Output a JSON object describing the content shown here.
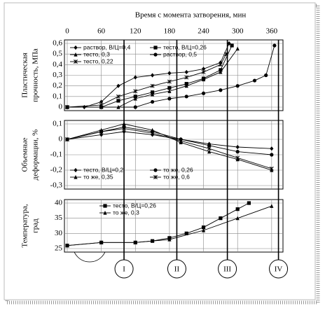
{
  "chart_data": [
    {
      "type": "line",
      "x_label": "Время с момента затворения, мин",
      "y_label": [
        "Пластическая",
        "прочность, МПа"
      ],
      "xlim": [
        0,
        375
      ],
      "xticks": [
        0,
        60,
        120,
        180,
        240,
        300,
        360
      ],
      "ylim": [
        0,
        0.6
      ],
      "yticks": [
        0,
        {
          "value": 0.1,
          "label": "0,1"
        },
        {
          "value": 0.2,
          "label": "0,2"
        },
        {
          "value": 0.3,
          "label": "0,3"
        },
        {
          "value": 0.4,
          "label": "0,4"
        },
        {
          "value": 0.5,
          "label": "0,5"
        },
        {
          "value": 0.6,
          "label": "0,6"
        }
      ],
      "grid": true,
      "series": [
        {
          "name": "раствор, В/Ц=0,4",
          "marker": "diamond",
          "color": "#000000",
          "x": [
            0,
            30,
            60,
            90,
            120,
            150,
            180,
            210,
            240,
            270,
            285
          ],
          "values": [
            0,
            0,
            0.05,
            0.2,
            0.28,
            0.3,
            0.32,
            0.33,
            0.36,
            0.42,
            0.6
          ]
        },
        {
          "name": "тесто, В/Ц=0,26",
          "marker": "square",
          "color": "#000000",
          "x": [
            0,
            60,
            90,
            120,
            150,
            180,
            210,
            240,
            270,
            290
          ],
          "values": [
            0,
            0,
            0.06,
            0.1,
            0.14,
            0.18,
            0.22,
            0.27,
            0.35,
            0.58
          ]
        },
        {
          "name": "тесто, 0,3",
          "marker": "triangle",
          "color": "#000000",
          "x": [
            0,
            90,
            120,
            150,
            180,
            210,
            240,
            270,
            300
          ],
          "values": [
            0,
            0,
            0.08,
            0.12,
            0.15,
            0.2,
            0.26,
            0.33,
            0.55
          ]
        },
        {
          "name": "раствор, 0,5",
          "marker": "circle",
          "color": "#000000",
          "x": [
            0,
            120,
            150,
            180,
            210,
            240,
            270,
            300,
            330,
            350,
            365
          ],
          "values": [
            0,
            0,
            0.05,
            0.08,
            0.1,
            0.13,
            0.16,
            0.2,
            0.25,
            0.3,
            0.58
          ]
        },
        {
          "name": "тесто, 0,22",
          "marker": "star",
          "color": "#000000",
          "x": [
            0,
            60,
            90,
            120,
            150,
            180,
            210,
            240,
            270,
            280
          ],
          "values": [
            0,
            0.02,
            0.1,
            0.15,
            0.2,
            0.24,
            0.28,
            0.33,
            0.4,
            0.5
          ]
        }
      ]
    },
    {
      "type": "line",
      "y_label": [
        "Объемные",
        "деформации, %"
      ],
      "xlim": [
        0,
        375
      ],
      "ylim": [
        -0.3,
        0.1
      ],
      "yticks": [
        {
          "value": 0.1,
          "label": "0,1"
        },
        0,
        {
          "value": -0.1,
          "label": "-0,1"
        },
        {
          "value": -0.2,
          "label": "-0,2"
        },
        {
          "value": -0.3,
          "label": "-0,3"
        }
      ],
      "grid": true,
      "series": [
        {
          "name": "тесто, В/Ц=0,2",
          "marker": "diamond",
          "color": "#000000",
          "x": [
            0,
            60,
            100,
            150,
            200,
            250,
            300,
            360
          ],
          "values": [
            0,
            0.03,
            0.05,
            0.03,
            0,
            -0.03,
            -0.05,
            -0.06
          ]
        },
        {
          "name": "то же, 0,26",
          "marker": "circle",
          "color": "#000000",
          "x": [
            0,
            60,
            100,
            150,
            200,
            250,
            300,
            360
          ],
          "values": [
            0,
            0.05,
            0.08,
            0.05,
            0,
            -0.04,
            -0.08,
            -0.1
          ]
        },
        {
          "name": "то же, 0,35",
          "marker": "triangle",
          "color": "#000000",
          "x": [
            0,
            60,
            100,
            150,
            200,
            250,
            300,
            360
          ],
          "values": [
            0,
            0.06,
            0.1,
            0.06,
            -0.02,
            -0.08,
            -0.13,
            -0.2
          ]
        },
        {
          "name": "то же, 0,6",
          "marker": "star",
          "color": "#000000",
          "x": [
            0,
            60,
            100,
            150,
            200,
            250,
            300,
            360
          ],
          "values": [
            0,
            0.05,
            0.07,
            0.04,
            -0.01,
            -0.06,
            -0.12,
            -0.19
          ]
        }
      ]
    },
    {
      "type": "line",
      "y_label": [
        "Температура,",
        "град"
      ],
      "xlim": [
        0,
        375
      ],
      "ylim": [
        25,
        40
      ],
      "yticks": [
        25,
        30,
        35,
        40
      ],
      "grid": true,
      "series": [
        {
          "name": "тесто, В/Ц=0,26",
          "marker": "square",
          "color": "#000000",
          "x": [
            0,
            60,
            120,
            150,
            180,
            210,
            240,
            270,
            300,
            320
          ],
          "values": [
            26,
            27,
            27,
            27.5,
            28.5,
            30,
            32,
            35,
            38,
            40
          ]
        },
        {
          "name": "то же, 0,3",
          "marker": "triangle",
          "color": "#000000",
          "x": [
            0,
            60,
            120,
            180,
            240,
            300,
            360
          ],
          "values": [
            26,
            27,
            27,
            28,
            31,
            35,
            39
          ]
        }
      ],
      "stages": [
        {
          "label": "I",
          "x": 100
        },
        {
          "label": "II",
          "x": 193
        },
        {
          "label": "III",
          "x": 282
        },
        {
          "label": "IV",
          "x": 372
        }
      ]
    }
  ]
}
